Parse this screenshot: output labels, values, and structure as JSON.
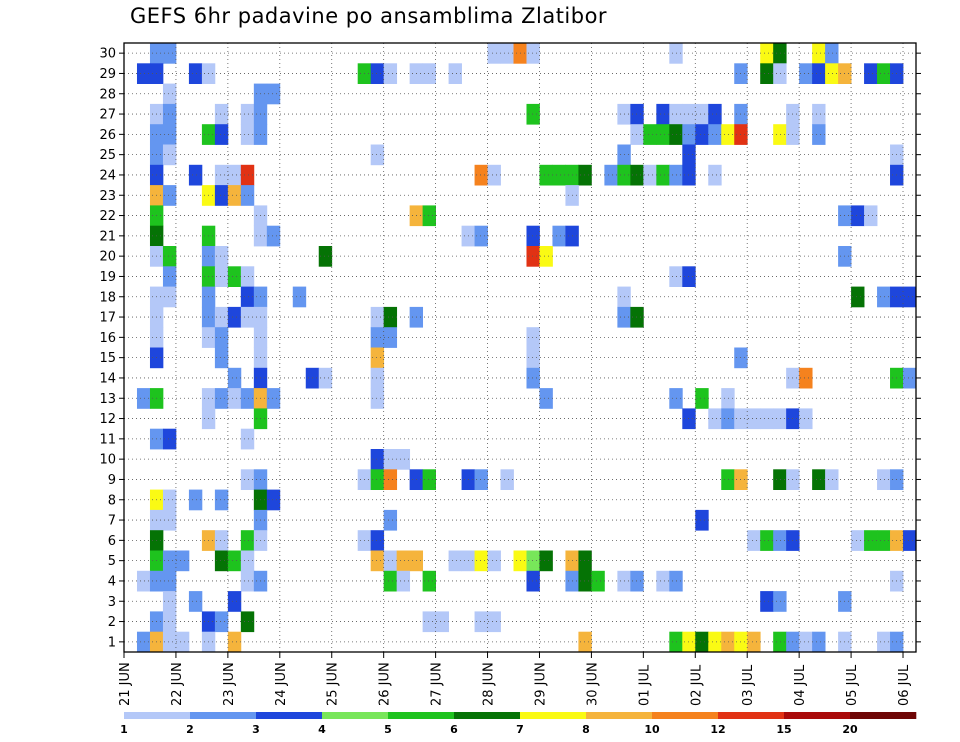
{
  "chart_data": {
    "type": "heatmap",
    "title": "GEFS 6hr padavine po ansamblima Zlatibor",
    "xlabel": "",
    "ylabel": "",
    "y_members": [
      1,
      2,
      3,
      4,
      5,
      6,
      7,
      8,
      9,
      10,
      11,
      12,
      13,
      14,
      15,
      16,
      17,
      18,
      19,
      20,
      21,
      22,
      23,
      24,
      25,
      26,
      27,
      28,
      29,
      30
    ],
    "x_ticks": [
      "21 JUN",
      "22 JUN",
      "23 JUN",
      "24 JUN",
      "25 JUN",
      "26 JUN",
      "27 JUN",
      "28 JUN",
      "29 JUN",
      "30 JUN",
      "01 JUL",
      "02 JUL",
      "03 JUL",
      "04 JUL",
      "05 JUL",
      "06 JUL"
    ],
    "time_steps": 61,
    "time_step_hours": 6,
    "grid": true,
    "colorbar": {
      "levels": [
        "1",
        "2",
        "3",
        "4",
        "5",
        "6",
        "7",
        "8",
        "10",
        "12",
        "15",
        "20"
      ],
      "colors": [
        "#b4c8f8",
        "#6496f0",
        "#1e46dc",
        "#78e65a",
        "#1ec31e",
        "#057305",
        "#fafa14",
        "#f5b43c",
        "#f5821e",
        "#e13214",
        "#aa0a0a",
        "#6e0505"
      ],
      "placement": "bottom"
    },
    "cells_description": "Each cell: [member, time-step index from 21 JUN 00UTC, precipitation class index 0-11 mapped to colorbar colors]",
    "cells": [
      [
        30,
        2,
        1
      ],
      [
        30,
        3,
        1
      ],
      [
        30,
        28,
        0
      ],
      [
        30,
        29,
        0
      ],
      [
        30,
        30,
        8
      ],
      [
        30,
        31,
        0
      ],
      [
        30,
        42,
        0
      ],
      [
        30,
        49,
        6
      ],
      [
        30,
        50,
        5
      ],
      [
        30,
        53,
        6
      ],
      [
        30,
        54,
        1
      ],
      [
        29,
        1,
        2
      ],
      [
        29,
        2,
        2
      ],
      [
        29,
        5,
        2
      ],
      [
        29,
        6,
        0
      ],
      [
        29,
        18,
        4
      ],
      [
        29,
        19,
        2
      ],
      [
        29,
        20,
        0
      ],
      [
        29,
        22,
        0
      ],
      [
        29,
        23,
        0
      ],
      [
        29,
        25,
        0
      ],
      [
        29,
        47,
        1
      ],
      [
        29,
        49,
        5
      ],
      [
        29,
        50,
        0
      ],
      [
        29,
        52,
        1
      ],
      [
        29,
        53,
        2
      ],
      [
        29,
        54,
        6
      ],
      [
        29,
        55,
        7
      ],
      [
        29,
        57,
        2
      ],
      [
        29,
        58,
        4
      ],
      [
        29,
        59,
        2
      ],
      [
        28,
        3,
        0
      ],
      [
        28,
        10,
        1
      ],
      [
        28,
        11,
        1
      ],
      [
        27,
        2,
        0
      ],
      [
        27,
        3,
        1
      ],
      [
        27,
        7,
        0
      ],
      [
        27,
        9,
        0
      ],
      [
        27,
        10,
        1
      ],
      [
        27,
        31,
        4
      ],
      [
        27,
        38,
        0
      ],
      [
        27,
        39,
        2
      ],
      [
        27,
        41,
        2
      ],
      [
        27,
        42,
        0
      ],
      [
        27,
        43,
        0
      ],
      [
        27,
        44,
        0
      ],
      [
        27,
        45,
        2
      ],
      [
        27,
        47,
        1
      ],
      [
        27,
        51,
        0
      ],
      [
        27,
        53,
        0
      ],
      [
        26,
        2,
        1
      ],
      [
        26,
        3,
        1
      ],
      [
        26,
        6,
        4
      ],
      [
        26,
        7,
        2
      ],
      [
        26,
        9,
        0
      ],
      [
        26,
        10,
        1
      ],
      [
        26,
        39,
        0
      ],
      [
        26,
        40,
        4
      ],
      [
        26,
        41,
        4
      ],
      [
        26,
        42,
        5
      ],
      [
        26,
        43,
        1
      ],
      [
        26,
        44,
        2
      ],
      [
        26,
        45,
        1
      ],
      [
        26,
        46,
        6
      ],
      [
        26,
        47,
        9
      ],
      [
        26,
        50,
        6
      ],
      [
        26,
        51,
        0
      ],
      [
        26,
        53,
        1
      ],
      [
        25,
        2,
        1
      ],
      [
        25,
        3,
        0
      ],
      [
        25,
        19,
        0
      ],
      [
        25,
        38,
        1
      ],
      [
        25,
        43,
        2
      ],
      [
        25,
        59,
        0
      ],
      [
        24,
        2,
        2
      ],
      [
        24,
        5,
        2
      ],
      [
        24,
        7,
        0
      ],
      [
        24,
        8,
        0
      ],
      [
        24,
        9,
        9
      ],
      [
        24,
        27,
        8
      ],
      [
        24,
        28,
        0
      ],
      [
        24,
        32,
        4
      ],
      [
        24,
        33,
        4
      ],
      [
        24,
        34,
        4
      ],
      [
        24,
        35,
        5
      ],
      [
        24,
        37,
        1
      ],
      [
        24,
        38,
        4
      ],
      [
        24,
        39,
        5
      ],
      [
        24,
        40,
        0
      ],
      [
        24,
        41,
        4
      ],
      [
        24,
        42,
        1
      ],
      [
        24,
        43,
        2
      ],
      [
        24,
        45,
        0
      ],
      [
        24,
        59,
        2
      ],
      [
        23,
        2,
        7
      ],
      [
        23,
        3,
        1
      ],
      [
        23,
        6,
        6
      ],
      [
        23,
        7,
        2
      ],
      [
        23,
        8,
        7
      ],
      [
        23,
        9,
        1
      ],
      [
        23,
        34,
        0
      ],
      [
        22,
        2,
        4
      ],
      [
        22,
        10,
        0
      ],
      [
        22,
        22,
        7
      ],
      [
        22,
        23,
        4
      ],
      [
        22,
        55,
        1
      ],
      [
        22,
        56,
        2
      ],
      [
        22,
        57,
        0
      ],
      [
        21,
        2,
        5
      ],
      [
        21,
        6,
        4
      ],
      [
        21,
        10,
        0
      ],
      [
        21,
        11,
        1
      ],
      [
        21,
        26,
        0
      ],
      [
        21,
        27,
        1
      ],
      [
        21,
        31,
        2
      ],
      [
        21,
        33,
        1
      ],
      [
        21,
        34,
        2
      ],
      [
        20,
        2,
        0
      ],
      [
        20,
        3,
        4
      ],
      [
        20,
        6,
        1
      ],
      [
        20,
        7,
        0
      ],
      [
        20,
        15,
        5
      ],
      [
        20,
        31,
        9
      ],
      [
        20,
        32,
        6
      ],
      [
        20,
        55,
        1
      ],
      [
        19,
        3,
        1
      ],
      [
        19,
        6,
        4
      ],
      [
        19,
        7,
        0
      ],
      [
        19,
        8,
        4
      ],
      [
        19,
        9,
        0
      ],
      [
        19,
        42,
        0
      ],
      [
        19,
        43,
        2
      ],
      [
        18,
        2,
        0
      ],
      [
        18,
        3,
        0
      ],
      [
        18,
        6,
        1
      ],
      [
        18,
        9,
        2
      ],
      [
        18,
        10,
        1
      ],
      [
        18,
        13,
        1
      ],
      [
        18,
        38,
        0
      ],
      [
        18,
        56,
        5
      ],
      [
        18,
        58,
        1
      ],
      [
        18,
        59,
        2
      ],
      [
        18,
        60,
        2
      ],
      [
        17,
        2,
        0
      ],
      [
        17,
        6,
        1
      ],
      [
        17,
        7,
        0
      ],
      [
        17,
        8,
        2
      ],
      [
        17,
        9,
        0
      ],
      [
        17,
        10,
        0
      ],
      [
        17,
        19,
        0
      ],
      [
        17,
        20,
        5
      ],
      [
        17,
        22,
        1
      ],
      [
        17,
        38,
        1
      ],
      [
        17,
        39,
        5
      ],
      [
        16,
        2,
        0
      ],
      [
        16,
        6,
        0
      ],
      [
        16,
        7,
        1
      ],
      [
        16,
        10,
        0
      ],
      [
        16,
        19,
        1
      ],
      [
        16,
        20,
        1
      ],
      [
        16,
        31,
        0
      ],
      [
        15,
        2,
        2
      ],
      [
        15,
        7,
        1
      ],
      [
        15,
        10,
        0
      ],
      [
        15,
        19,
        7
      ],
      [
        15,
        31,
        0
      ],
      [
        15,
        47,
        1
      ],
      [
        14,
        8,
        1
      ],
      [
        14,
        10,
        2
      ],
      [
        14,
        14,
        2
      ],
      [
        14,
        15,
        0
      ],
      [
        14,
        19,
        0
      ],
      [
        14,
        31,
        1
      ],
      [
        14,
        51,
        0
      ],
      [
        14,
        52,
        8
      ],
      [
        14,
        59,
        4
      ],
      [
        14,
        60,
        1
      ],
      [
        13,
        1,
        1
      ],
      [
        13,
        2,
        4
      ],
      [
        13,
        6,
        0
      ],
      [
        13,
        7,
        1
      ],
      [
        13,
        8,
        0
      ],
      [
        13,
        9,
        1
      ],
      [
        13,
        10,
        7
      ],
      [
        13,
        11,
        1
      ],
      [
        13,
        19,
        0
      ],
      [
        13,
        32,
        1
      ],
      [
        13,
        42,
        1
      ],
      [
        13,
        44,
        4
      ],
      [
        13,
        46,
        0
      ],
      [
        12,
        6,
        0
      ],
      [
        12,
        10,
        4
      ],
      [
        12,
        43,
        2
      ],
      [
        12,
        45,
        0
      ],
      [
        12,
        46,
        1
      ],
      [
        12,
        47,
        0
      ],
      [
        12,
        48,
        0
      ],
      [
        12,
        49,
        0
      ],
      [
        12,
        50,
        0
      ],
      [
        12,
        51,
        2
      ],
      [
        12,
        52,
        0
      ],
      [
        11,
        2,
        1
      ],
      [
        11,
        3,
        2
      ],
      [
        11,
        9,
        0
      ],
      [
        10,
        19,
        2
      ],
      [
        10,
        20,
        0
      ],
      [
        10,
        21,
        0
      ],
      [
        9,
        9,
        0
      ],
      [
        9,
        10,
        1
      ],
      [
        9,
        18,
        0
      ],
      [
        9,
        19,
        4
      ],
      [
        9,
        20,
        8
      ],
      [
        9,
        22,
        2
      ],
      [
        9,
        23,
        4
      ],
      [
        9,
        26,
        2
      ],
      [
        9,
        27,
        1
      ],
      [
        9,
        29,
        0
      ],
      [
        9,
        46,
        4
      ],
      [
        9,
        47,
        7
      ],
      [
        9,
        50,
        5
      ],
      [
        9,
        51,
        0
      ],
      [
        9,
        53,
        5
      ],
      [
        9,
        54,
        0
      ],
      [
        9,
        58,
        0
      ],
      [
        9,
        59,
        1
      ],
      [
        8,
        2,
        6
      ],
      [
        8,
        3,
        0
      ],
      [
        8,
        5,
        1
      ],
      [
        8,
        7,
        1
      ],
      [
        8,
        10,
        5
      ],
      [
        8,
        11,
        2
      ],
      [
        7,
        2,
        0
      ],
      [
        7,
        3,
        0
      ],
      [
        7,
        10,
        1
      ],
      [
        7,
        20,
        1
      ],
      [
        7,
        44,
        2
      ],
      [
        6,
        2,
        5
      ],
      [
        6,
        6,
        7
      ],
      [
        6,
        7,
        0
      ],
      [
        6,
        9,
        4
      ],
      [
        6,
        10,
        0
      ],
      [
        6,
        18,
        0
      ],
      [
        6,
        19,
        2
      ],
      [
        6,
        48,
        0
      ],
      [
        6,
        49,
        4
      ],
      [
        6,
        50,
        1
      ],
      [
        6,
        51,
        2
      ],
      [
        6,
        56,
        0
      ],
      [
        6,
        57,
        4
      ],
      [
        6,
        58,
        4
      ],
      [
        6,
        59,
        7
      ],
      [
        6,
        60,
        2
      ],
      [
        5,
        2,
        4
      ],
      [
        5,
        3,
        1
      ],
      [
        5,
        4,
        1
      ],
      [
        5,
        7,
        5
      ],
      [
        5,
        8,
        4
      ],
      [
        5,
        9,
        0
      ],
      [
        5,
        19,
        7
      ],
      [
        5,
        20,
        0
      ],
      [
        5,
        21,
        7
      ],
      [
        5,
        22,
        7
      ],
      [
        5,
        25,
        0
      ],
      [
        5,
        26,
        0
      ],
      [
        5,
        27,
        6
      ],
      [
        5,
        28,
        0
      ],
      [
        5,
        30,
        6
      ],
      [
        5,
        31,
        3
      ],
      [
        5,
        32,
        5
      ],
      [
        5,
        34,
        7
      ],
      [
        5,
        35,
        5
      ],
      [
        4,
        1,
        0
      ],
      [
        4,
        2,
        1
      ],
      [
        4,
        3,
        1
      ],
      [
        4,
        9,
        0
      ],
      [
        4,
        10,
        1
      ],
      [
        4,
        20,
        4
      ],
      [
        4,
        21,
        0
      ],
      [
        4,
        23,
        4
      ],
      [
        4,
        31,
        2
      ],
      [
        4,
        34,
        1
      ],
      [
        4,
        35,
        5
      ],
      [
        4,
        36,
        4
      ],
      [
        4,
        38,
        0
      ],
      [
        4,
        39,
        1
      ],
      [
        4,
        41,
        0
      ],
      [
        4,
        42,
        1
      ],
      [
        4,
        59,
        0
      ],
      [
        3,
        3,
        0
      ],
      [
        3,
        5,
        1
      ],
      [
        3,
        8,
        2
      ],
      [
        3,
        49,
        2
      ],
      [
        3,
        50,
        1
      ],
      [
        3,
        55,
        1
      ],
      [
        2,
        2,
        1
      ],
      [
        2,
        3,
        0
      ],
      [
        2,
        6,
        2
      ],
      [
        2,
        7,
        1
      ],
      [
        2,
        9,
        5
      ],
      [
        2,
        23,
        0
      ],
      [
        2,
        24,
        0
      ],
      [
        2,
        27,
        0
      ],
      [
        2,
        28,
        0
      ],
      [
        1,
        1,
        1
      ],
      [
        1,
        2,
        7
      ],
      [
        1,
        3,
        0
      ],
      [
        1,
        4,
        0
      ],
      [
        1,
        6,
        0
      ],
      [
        1,
        8,
        7
      ],
      [
        1,
        35,
        7
      ],
      [
        1,
        42,
        4
      ],
      [
        1,
        43,
        6
      ],
      [
        1,
        44,
        5
      ],
      [
        1,
        45,
        6
      ],
      [
        1,
        46,
        7
      ],
      [
        1,
        47,
        6
      ],
      [
        1,
        48,
        7
      ],
      [
        1,
        50,
        4
      ],
      [
        1,
        51,
        1
      ],
      [
        1,
        52,
        0
      ],
      [
        1,
        53,
        1
      ],
      [
        1,
        55,
        0
      ],
      [
        1,
        58,
        0
      ],
      [
        1,
        59,
        1
      ]
    ]
  }
}
